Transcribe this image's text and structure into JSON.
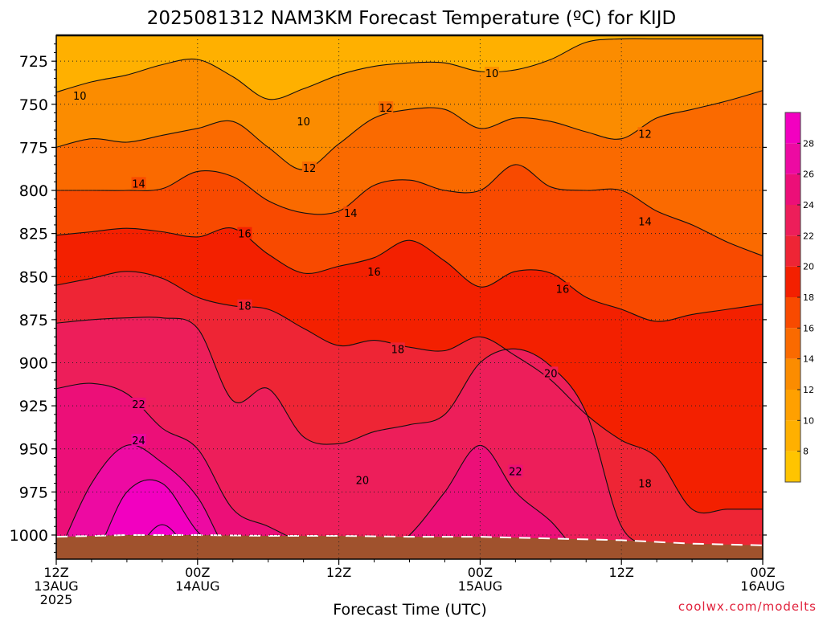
{
  "chart_data": {
    "type": "heatmap",
    "title": "2025081312 NAM3KM Forecast Temperature (ºC) for KIJD",
    "xlabel": "Forecast Time (UTC)",
    "credit": "coolwx.com/modelts",
    "x_ticks": [
      {
        "hours": 0,
        "lines": [
          "12Z",
          "13AUG",
          "2025"
        ]
      },
      {
        "hours": 12,
        "lines": [
          "00Z",
          "14AUG"
        ]
      },
      {
        "hours": 24,
        "lines": [
          "12Z"
        ]
      },
      {
        "hours": 36,
        "lines": [
          "00Z",
          "15AUG"
        ]
      },
      {
        "hours": 48,
        "lines": [
          "12Z"
        ]
      },
      {
        "hours": 60,
        "lines": [
          "00Z",
          "16AUG"
        ]
      }
    ],
    "xlim": [
      0,
      60
    ],
    "y_ticks": [
      725,
      750,
      775,
      800,
      825,
      850,
      875,
      900,
      925,
      950,
      975,
      1000
    ],
    "ylim": [
      710,
      1014
    ],
    "y_axis": "pressure (hPa), increasing downward",
    "grid": true,
    "colorbar": {
      "ticks": [
        8,
        10,
        12,
        14,
        16,
        18,
        20,
        22,
        24,
        26,
        28
      ],
      "stops": [
        {
          "t": 6,
          "color": "#ffc400"
        },
        {
          "t": 8,
          "color": "#ffb000"
        },
        {
          "t": 10,
          "color": "#ffa000"
        },
        {
          "t": 12,
          "color": "#fb8c00"
        },
        {
          "t": 14,
          "color": "#fa6a00"
        },
        {
          "t": 16,
          "color": "#f84a00"
        },
        {
          "t": 18,
          "color": "#f32000"
        },
        {
          "t": 20,
          "color": "#ee2535"
        },
        {
          "t": 22,
          "color": "#ed1e5a"
        },
        {
          "t": 24,
          "color": "#ec0f78"
        },
        {
          "t": 26,
          "color": "#ed0aa2"
        },
        {
          "t": 28,
          "color": "#f200c0"
        },
        {
          "t": 30,
          "color": "#f500cf"
        }
      ],
      "range": [
        6,
        30
      ]
    },
    "terrain_color": "#a0522d",
    "terrain_top_hpa": [
      [
        0,
        1001
      ],
      [
        6,
        1000
      ],
      [
        12,
        1000
      ],
      [
        18,
        1000.5
      ],
      [
        24,
        1000.5
      ],
      [
        30,
        1001
      ],
      [
        36,
        1001
      ],
      [
        42,
        1002
      ],
      [
        48,
        1003
      ],
      [
        54,
        1005
      ],
      [
        60,
        1006
      ]
    ],
    "times_hours": [
      0,
      3,
      6,
      9,
      12,
      15,
      18,
      21,
      24,
      27,
      30,
      33,
      36,
      39,
      42,
      45,
      48,
      51,
      54,
      57,
      60
    ],
    "isotherms": [
      {
        "t": 10,
        "label_at": [
          [
            2,
            745
          ],
          [
            21,
            760
          ],
          [
            37,
            732
          ]
        ],
        "p": [
          743,
          737,
          733,
          727,
          724,
          734,
          747,
          741,
          733,
          728,
          726,
          726,
          731,
          730,
          724,
          714,
          712,
          712,
          712,
          712,
          712
        ]
      },
      {
        "t": 12,
        "label_at": [
          [
            21.5,
            787
          ],
          [
            28,
            752
          ],
          [
            50,
            767
          ]
        ],
        "p": [
          775,
          770,
          772,
          768,
          764,
          760,
          775,
          788,
          773,
          758,
          753,
          753,
          764,
          758,
          760,
          766,
          770,
          758,
          753,
          748,
          742
        ]
      },
      {
        "t": 14,
        "label_at": [
          [
            7,
            796
          ],
          [
            25,
            813
          ],
          [
            50,
            818
          ]
        ],
        "p": [
          800,
          800,
          800,
          799,
          789,
          792,
          806,
          813,
          812,
          797,
          794,
          800,
          800,
          785,
          798,
          800,
          800,
          812,
          820,
          830,
          838
        ]
      },
      {
        "t": 16,
        "label_at": [
          [
            16,
            825
          ],
          [
            27,
            847
          ],
          [
            43,
            857
          ]
        ],
        "p": [
          826,
          824,
          822,
          824,
          827,
          822,
          837,
          848,
          844,
          839,
          829,
          841,
          856,
          847,
          848,
          862,
          869,
          876,
          872,
          869,
          866
        ]
      },
      {
        "t": 18,
        "label_at": [
          [
            16,
            867
          ],
          [
            29,
            892
          ],
          [
            50,
            970
          ]
        ],
        "p": [
          855,
          851,
          847,
          851,
          862,
          867,
          869,
          880,
          890,
          887,
          891,
          893,
          885,
          896,
          910,
          930,
          945,
          955,
          985,
          985,
          985
        ]
      },
      {
        "t": 20,
        "label_at": [
          [
            42,
            906
          ],
          [
            26,
            968
          ]
        ],
        "p": [
          877,
          875,
          874,
          874,
          880,
          922,
          915,
          943,
          947,
          940,
          936,
          930,
          900,
          892,
          902,
          929,
          995,
          1006,
          1014,
          1014,
          1014
        ]
      },
      {
        "t": 22,
        "label_at": [
          [
            7,
            924
          ],
          [
            39,
            963
          ]
        ],
        "p": [
          915,
          912,
          918,
          938,
          950,
          985,
          995,
          1005,
          1014,
          1014,
          1000,
          975,
          948,
          975,
          992,
          1014,
          1014,
          1014,
          1014,
          1014,
          1014
        ]
      },
      {
        "t": 24,
        "label_at": [
          [
            7,
            945
          ]
        ],
        "p": [
          1014,
          970,
          948,
          958,
          978,
          1014,
          1014,
          1014,
          1014,
          1014,
          1014,
          1014,
          1014,
          1014,
          1014,
          1014,
          1014,
          1014,
          1014,
          1014,
          1014
        ]
      },
      {
        "t": 26,
        "label_at": [],
        "p": [
          1014,
          1014,
          975,
          970,
          998,
          1014,
          1014,
          1014,
          1014,
          1014,
          1014,
          1014,
          1014,
          1014,
          1014,
          1014,
          1014,
          1014,
          1014,
          1014,
          1014
        ]
      },
      {
        "t": 28,
        "label_at": [],
        "p": [
          1014,
          1014,
          1014,
          994,
          1014,
          1014,
          1014,
          1014,
          1014,
          1014,
          1014,
          1014,
          1014,
          1014,
          1014,
          1014,
          1014,
          1014,
          1014,
          1014,
          1014
        ]
      }
    ],
    "top_temp": 8
  }
}
